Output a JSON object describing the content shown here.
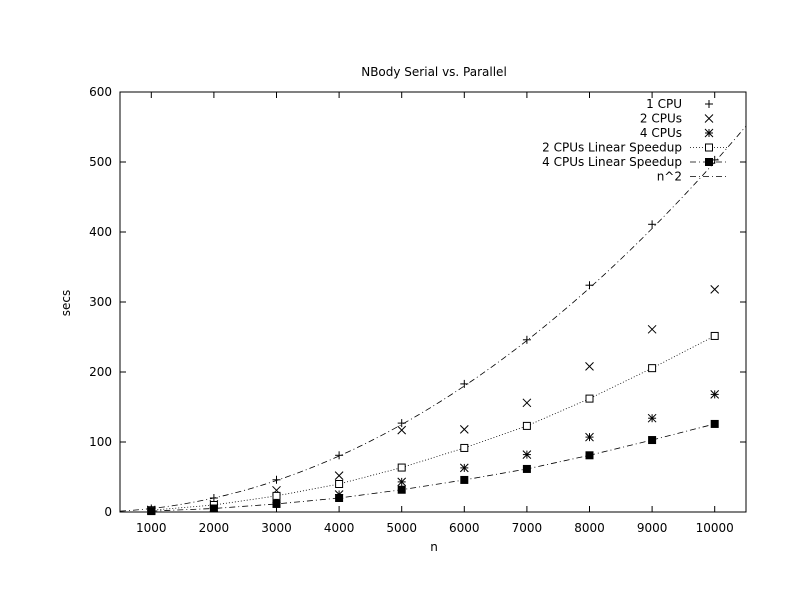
{
  "chart_data": {
    "type": "scatter",
    "title": "NBody Serial vs. Parallel",
    "xlabel": "n",
    "ylabel": "secs",
    "xlim": [
      500,
      10500
    ],
    "ylim": [
      0,
      600
    ],
    "x_ticks": [
      1000,
      2000,
      3000,
      4000,
      5000,
      6000,
      7000,
      8000,
      9000,
      10000
    ],
    "y_ticks": [
      0,
      100,
      200,
      300,
      400,
      500,
      600
    ],
    "grid": false,
    "legend_position": "top-right",
    "series": [
      {
        "name": "1 CPU",
        "style": "points",
        "marker": "plus",
        "x": [
          1000,
          2000,
          3000,
          4000,
          5000,
          6000,
          7000,
          8000,
          9000,
          10000
        ],
        "y": [
          5,
          20,
          46,
          81,
          127,
          183,
          246,
          324,
          411,
          503
        ]
      },
      {
        "name": "2 CPUs",
        "style": "points",
        "marker": "cross",
        "x": [
          1000,
          2000,
          3000,
          4000,
          5000,
          6000,
          7000,
          8000,
          9000,
          10000
        ],
        "y": [
          3,
          11,
          31,
          52,
          117,
          118,
          156,
          208,
          261,
          318
        ]
      },
      {
        "name": "4 CPUs",
        "style": "points",
        "marker": "star",
        "x": [
          1000,
          2000,
          3000,
          4000,
          5000,
          6000,
          7000,
          8000,
          9000,
          10000
        ],
        "y": [
          2,
          6,
          19,
          25,
          43,
          63,
          82,
          107,
          134,
          168
        ]
      },
      {
        "name": "2 CPUs Linear Speedup",
        "style": "linespoints",
        "marker": "open-square",
        "dash": "dotted",
        "x": [
          1000,
          2000,
          3000,
          4000,
          5000,
          6000,
          7000,
          8000,
          9000,
          10000
        ],
        "y": [
          2.5,
          10,
          23,
          40,
          63.5,
          91.5,
          123,
          162,
          205.5,
          251.5
        ]
      },
      {
        "name": "4 CPUs Linear Speedup",
        "style": "linespoints",
        "marker": "filled-square",
        "dash": "dash-dot",
        "x": [
          1000,
          2000,
          3000,
          4000,
          5000,
          6000,
          7000,
          8000,
          9000,
          10000
        ],
        "y": [
          1.3,
          5,
          11.5,
          20,
          31.8,
          45.8,
          61.5,
          81,
          102.8,
          125.8
        ]
      },
      {
        "name": "n^2",
        "style": "line",
        "dash": "dash-dot",
        "function": "5e-6*n^2",
        "coefficient": 5e-06
      }
    ]
  }
}
